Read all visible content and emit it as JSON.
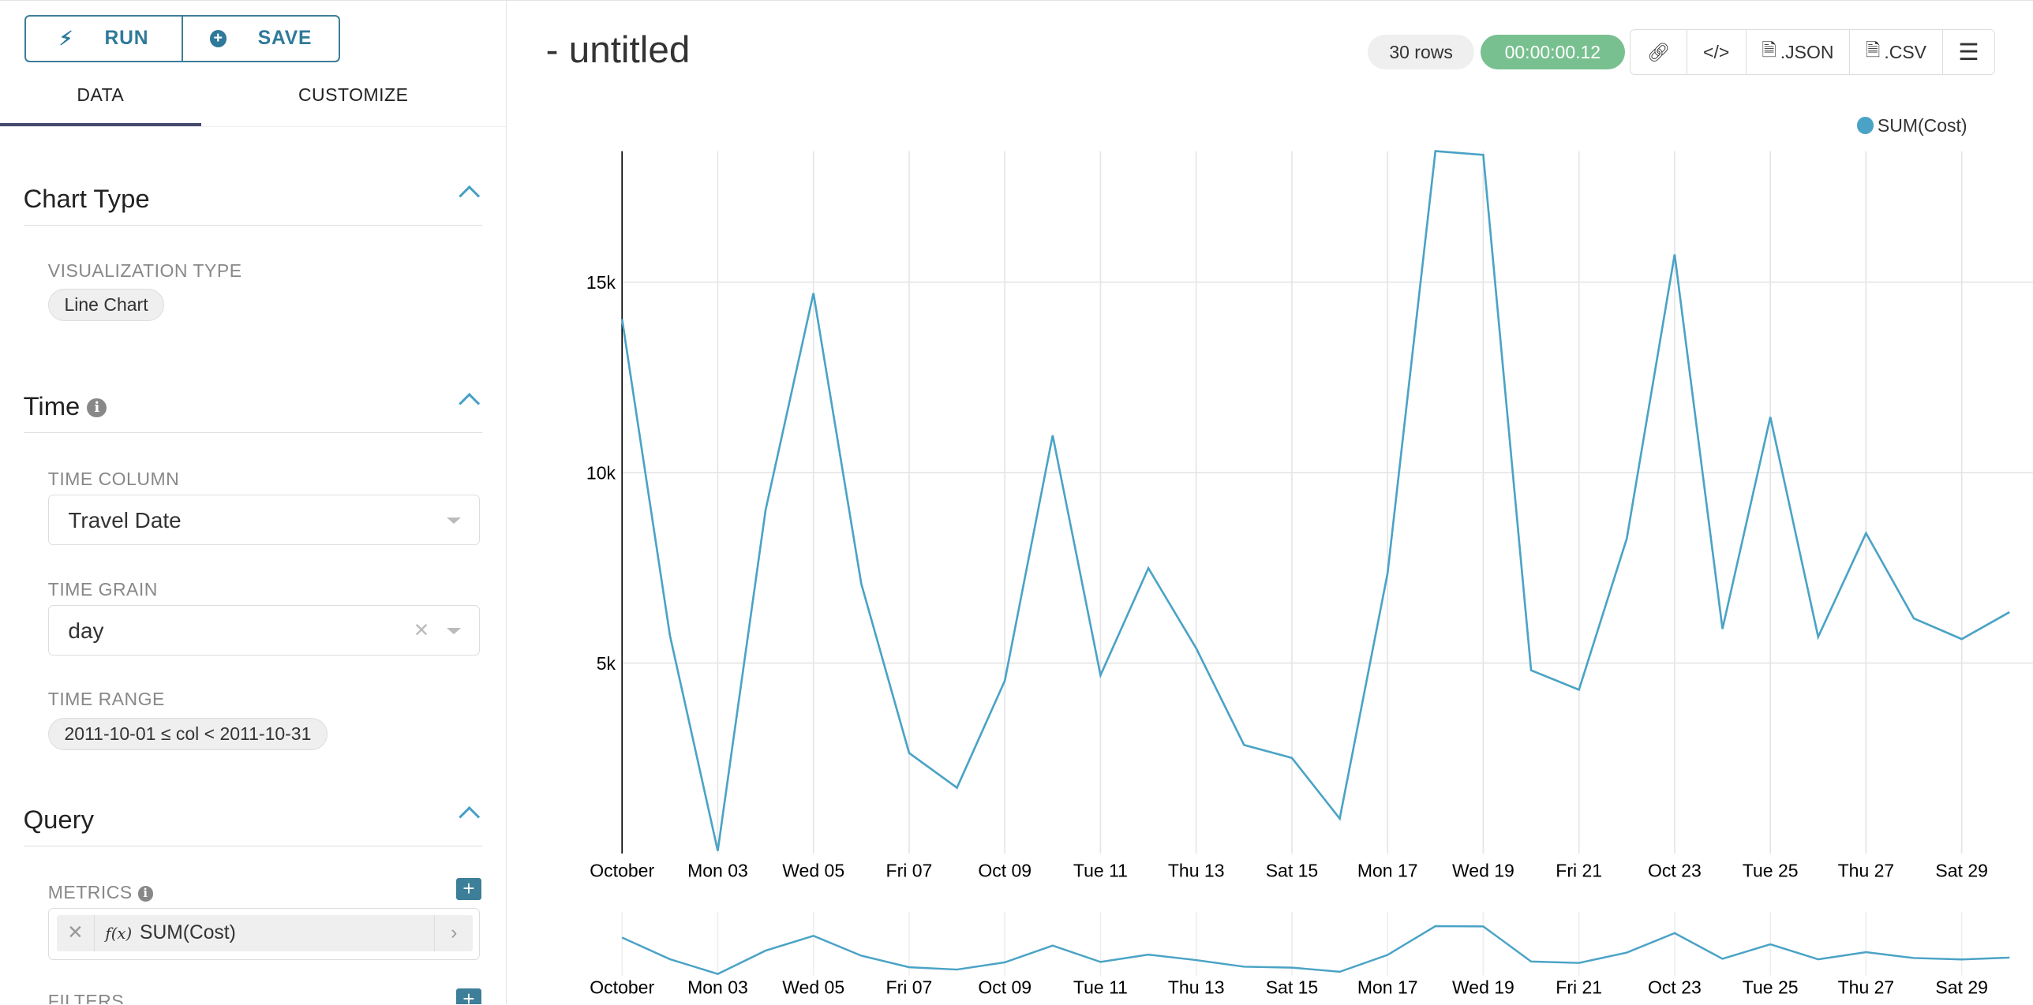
{
  "toolbar": {
    "run_label": "RUN",
    "save_label": "SAVE",
    "run_icon": "bolt-icon",
    "save_icon": "plus-circle-icon"
  },
  "tabs": [
    {
      "label": "DATA",
      "active": true
    },
    {
      "label": "CUSTOMIZE",
      "active": false
    }
  ],
  "sections": {
    "chart_type": {
      "title": "Chart Type",
      "viz_label": "VISUALIZATION TYPE",
      "viz_value": "Line Chart"
    },
    "time": {
      "title": "Time",
      "column_label": "TIME COLUMN",
      "column_value": "Travel Date",
      "grain_label": "TIME GRAIN",
      "grain_value": "day",
      "range_label": "TIME RANGE",
      "range_value": "2011-10-01 ≤ col < 2011-10-31"
    },
    "query": {
      "title": "Query",
      "metrics_label": "METRICS",
      "metric_value": "SUM(Cost)",
      "fx": "f(x)",
      "filters_label": "FILTERS"
    }
  },
  "header": {
    "title": "- untitled",
    "rows_badge": "30 rows",
    "time_badge": "00:00:00.12",
    "json_label": ".JSON",
    "csv_label": ".CSV"
  },
  "colors": {
    "accent": "#3d7e99",
    "series": "#4aa3c6",
    "success": "#78c08f"
  },
  "chart_data": {
    "type": "line",
    "series": [
      {
        "name": "SUM(Cost)",
        "values": [
          14030,
          5730,
          70,
          9020,
          14710,
          7080,
          2640,
          1730,
          4540,
          10980,
          4680,
          7490,
          5390,
          2850,
          2510,
          920,
          7360,
          18440,
          18340,
          4810,
          4300,
          8270,
          15730,
          5900,
          11460,
          5690,
          8410,
          6170,
          5630,
          6340
        ]
      }
    ],
    "x": [
      "2011-10-01",
      "2011-10-02",
      "2011-10-03",
      "2011-10-04",
      "2011-10-05",
      "2011-10-06",
      "2011-10-07",
      "2011-10-08",
      "2011-10-09",
      "2011-10-10",
      "2011-10-11",
      "2011-10-12",
      "2011-10-13",
      "2011-10-14",
      "2011-10-15",
      "2011-10-16",
      "2011-10-17",
      "2011-10-18",
      "2011-10-19",
      "2011-10-20",
      "2011-10-21",
      "2011-10-22",
      "2011-10-23",
      "2011-10-24",
      "2011-10-25",
      "2011-10-26",
      "2011-10-27",
      "2011-10-28",
      "2011-10-29",
      "2011-10-30"
    ],
    "xtick_labels": [
      "October",
      "Mon 03",
      "Wed 05",
      "Fri 07",
      "Oct 09",
      "Tue 11",
      "Thu 13",
      "Sat 15",
      "Mon 17",
      "Wed 19",
      "Fri 21",
      "Oct 23",
      "Tue 25",
      "Thu 27",
      "Sat 29"
    ],
    "ytick_labels": [
      "5k",
      "10k",
      "15k"
    ],
    "yticks": [
      5000,
      10000,
      15000
    ],
    "ylim": [
      0,
      18440
    ],
    "legend": "top-right",
    "grid": true,
    "has_range_brush": true
  }
}
